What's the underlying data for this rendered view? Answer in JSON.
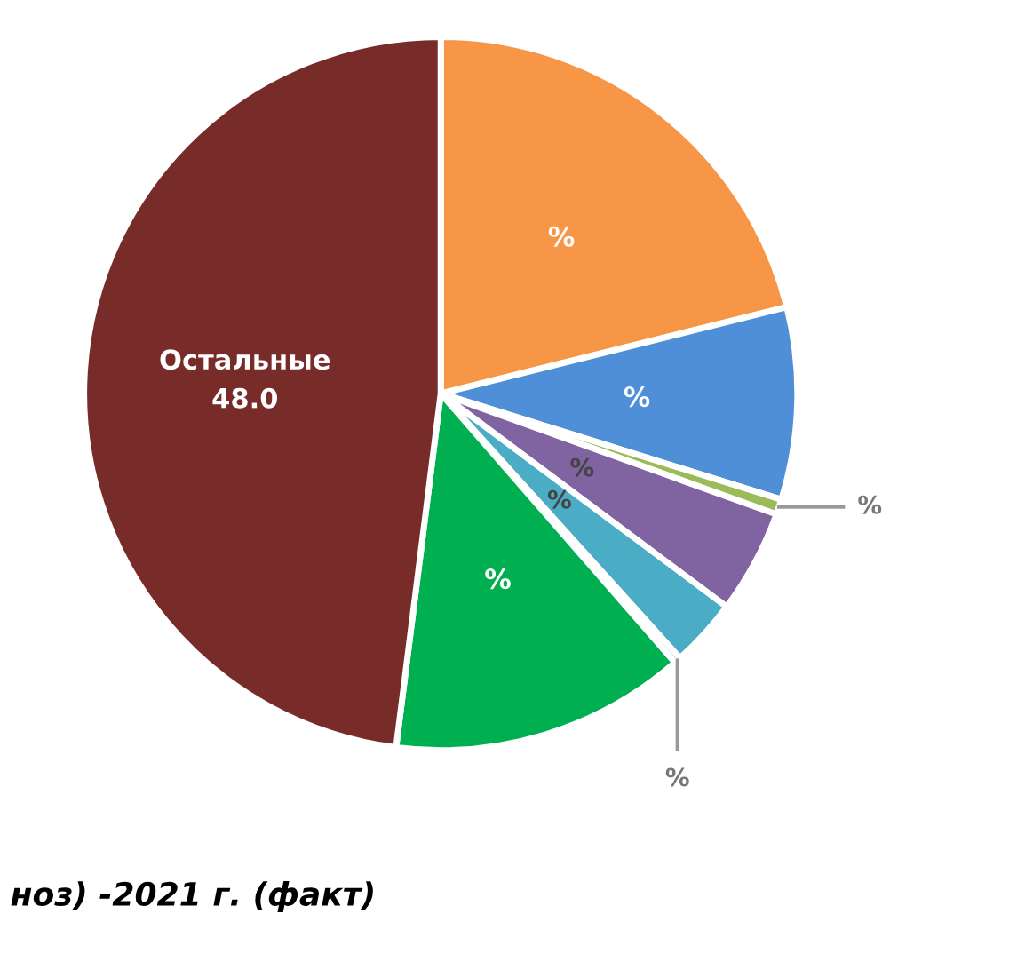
{
  "chart_data": {
    "type": "pie",
    "categories": [
      null,
      null,
      null,
      null,
      null,
      null,
      null,
      "Остальные"
    ],
    "values": [
      21.1,
      8.7,
      0.7,
      4.7,
      3.1,
      0.3,
      13.4,
      48.0
    ],
    "colors": [
      "#f79646",
      "#4f8fd8",
      "#9bbb59",
      "#8064a2",
      "#4bacc6",
      "#a5a5a5",
      "#00b050",
      "#772c2a"
    ],
    "value_labels": [
      "%",
      "%",
      "%",
      "%",
      "%",
      "%",
      "%",
      "48.0"
    ],
    "annotations": [
      "ноз) -2021 г. (факт)"
    ]
  }
}
